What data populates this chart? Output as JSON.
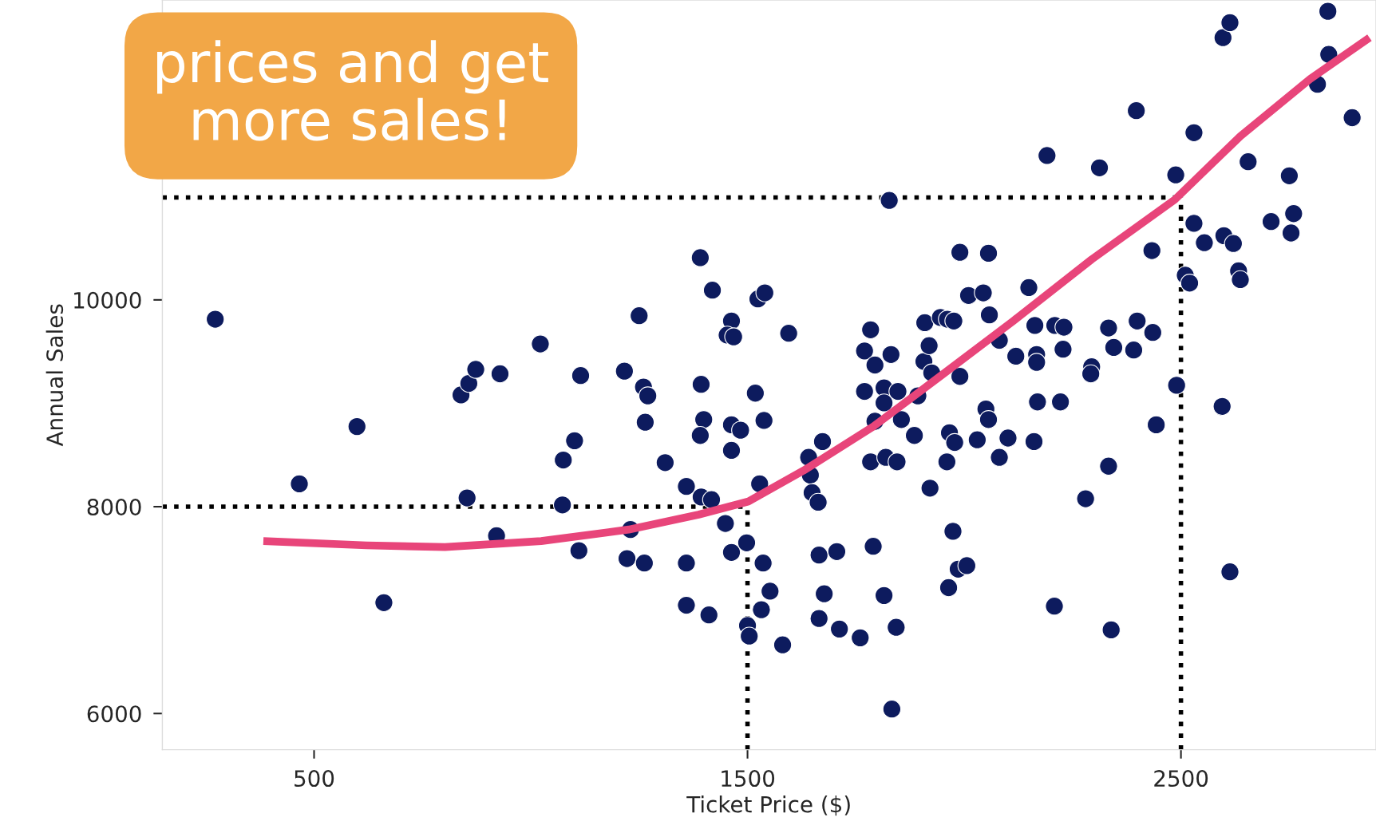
{
  "chart_data": {
    "type": "scatter",
    "xlabel": "Ticket Price ($)",
    "ylabel": "Annual Sales",
    "xlim": [
      150,
      2950
    ],
    "ylim": [
      5650,
      12900
    ],
    "xticks": [
      500,
      1500,
      2500
    ],
    "yticks": [
      6000,
      8000,
      10000
    ],
    "grid": false,
    "marker": "circle",
    "annotations": [
      "prices and get\nmore sales!"
    ],
    "ref_lines": [
      {
        "axis": "y",
        "value": 8000,
        "color": "#000000",
        "line_style": "dotted"
      },
      {
        "axis": "y",
        "value": 10990,
        "color": "#000000",
        "line_style": "dotted"
      },
      {
        "axis": "x",
        "value": 1500,
        "color": "#000000",
        "line_style": "dotted"
      },
      {
        "axis": "x",
        "value": 2500,
        "color": "#000000",
        "line_style": "dotted"
      }
    ],
    "series": [
      {
        "color": "#0d1b5e",
        "x": [
          272,
          466,
          599,
          661,
          839,
          857,
          873,
          853,
          921,
          929,
          1022,
          1075,
          1073,
          1101,
          1111,
          1115,
          1216,
          1222,
          1230,
          1250,
          1260,
          1270,
          1264,
          1262,
          1310,
          1359,
          1359,
          1359,
          1391,
          1393,
          1399,
          1391,
          1393,
          1417,
          1411,
          1419,
          1449,
          1463,
          1453,
          1468,
          1463,
          1463,
          1484,
          1463,
          1498,
          1500,
          1504,
          1518,
          1524,
          1540,
          1528,
          1536,
          1538,
          1532,
          1552,
          1581,
          1595,
          1641,
          1645,
          1649,
          1663,
          1673,
          1665,
          1677,
          1665,
          1706,
          1712,
          1760,
          1770,
          1770,
          1784,
          1784,
          1794,
          1794,
          1815,
          1815,
          1819,
          1831,
          1847,
          1845,
          1815,
          1790,
          1843,
          1833,
          1827,
          1855,
          1885,
          1893,
          1909,
          1907,
          1919,
          1925,
          1921,
          1945,
          1961,
          1976,
          1960,
          1966,
          1978,
          1974,
          1964,
          1986,
          2006,
          1990,
          1990,
          2010,
          2044,
          2056,
          2058,
          2030,
          2050,
          2056,
          2081,
          2081,
          2101,
          2119,
          2149,
          2163,
          2167,
          2167,
          2169,
          2161,
          2191,
          2208,
          2209,
          2230,
          2228,
          2222,
          2280,
          2294,
          2292,
          2312,
          2333,
          2345,
          2333,
          2339,
          2391,
          2397,
          2399,
          2433,
          2435,
          2443,
          2488,
          2490,
          2510,
          2520,
          2530,
          2530,
          2554,
          2597,
          2613,
          2599,
          2621,
          2595,
          2613,
          2633,
          2637,
          2655,
          2708,
          2750,
          2760,
          2754,
          2815,
          2839,
          2841,
          2895
        ],
        "values": [
          9813,
          8221,
          8775,
          7072,
          9081,
          9192,
          9328,
          8085,
          7719,
          9285,
          9574,
          8451,
          8017,
          8638,
          7575,
          9268,
          9311,
          7498,
          7779,
          9847,
          9157,
          9072,
          8817,
          7455,
          8426,
          8196,
          7455,
          7047,
          10408,
          9183,
          8843,
          8689,
          8094,
          8068,
          6953,
          10094,
          7838,
          9796,
          9660,
          9643,
          8792,
          8545,
          8740,
          7558,
          7651,
          6851,
          6749,
          9098,
          10009,
          10068,
          8221,
          7455,
          8834,
          7004,
          7183,
          6664,
          9677,
          8477,
          8306,
          8136,
          8043,
          8630,
          7532,
          7158,
          6919,
          7566,
          6817,
          6732,
          9506,
          9115,
          9711,
          8434,
          9370,
          8826,
          9149,
          9004,
          8477,
          9472,
          9115,
          8434,
          7141,
          7617,
          6834,
          6043,
          10962,
          8843,
          8689,
          9072,
          9779,
          9404,
          9557,
          9294,
          8179,
          9830,
          9813,
          9796,
          8434,
          8715,
          8621,
          7762,
          7217,
          7396,
          7430,
          10460,
          9260,
          10043,
          10068,
          10451,
          9855,
          8647,
          8945,
          8843,
          9609,
          8477,
          8664,
          9455,
          10119,
          9753,
          9472,
          9396,
          9013,
          8630,
          11396,
          7038,
          9753,
          9736,
          9523,
          9013,
          8077,
          9353,
          9285,
          11277,
          9728,
          9540,
          8392,
          6809,
          9515,
          11830,
          9796,
          10477,
          9685,
          8792,
          11209,
          9174,
          10238,
          10162,
          11617,
          10740,
          10553,
          12536,
          12681,
          10621,
          10545,
          8970,
          7370,
          10281,
          10196,
          11336,
          10757,
          11200,
          10834,
          10647,
          12085,
          12791,
          12374,
          11762
        ]
      },
      {
        "type": "line",
        "color": "#e8457a",
        "marker": "none",
        "line_style": "solid",
        "x": [
          383,
          621,
          802,
          1024,
          1226,
          1387,
          1502,
          1629,
          1790,
          1952,
          2113,
          2294,
          2486,
          2637,
          2798,
          2935
        ],
        "values": [
          7668,
          7626,
          7609,
          7668,
          7779,
          7923,
          8051,
          8349,
          8774,
          9285,
          9796,
          10391,
          10970,
          11583,
          12136,
          12536
        ]
      }
    ]
  }
}
